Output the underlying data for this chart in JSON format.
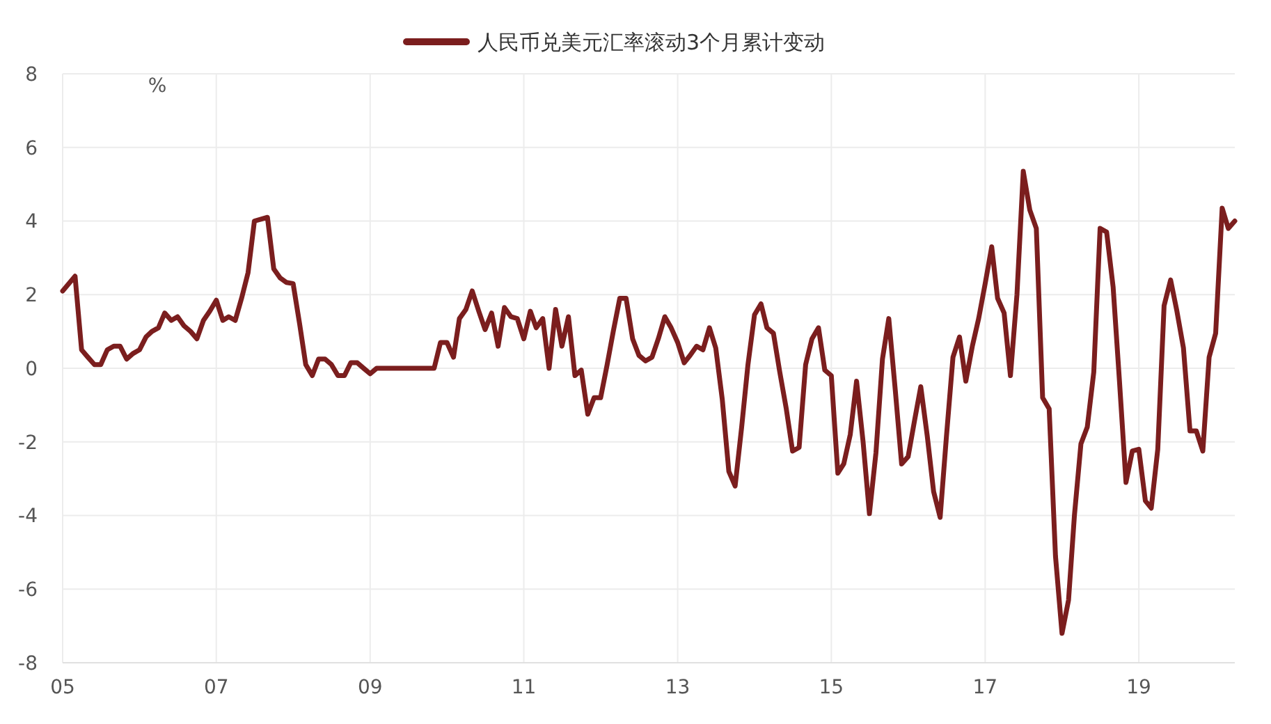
{
  "chart_data": {
    "type": "line",
    "legend": "top",
    "grid": true,
    "line_style": "solid",
    "marker": "none",
    "annotations": [
      "%"
    ],
    "x": [
      "2005-01",
      "2005-03",
      "2005-04",
      "2005-05",
      "2005-06",
      "2005-07",
      "2005-08",
      "2005-09",
      "2005-10",
      "2005-11",
      "2005-12",
      "2006-01",
      "2006-02",
      "2006-03",
      "2006-04",
      "2006-05",
      "2006-06",
      "2006-07",
      "2006-08",
      "2006-09",
      "2006-10",
      "2006-11",
      "2006-12",
      "2007-01",
      "2007-02",
      "2007-03",
      "2007-04",
      "2007-05",
      "2007-06",
      "2007-07",
      "2007-08",
      "2007-09",
      "2007-10",
      "2007-11",
      "2007-12",
      "2008-01",
      "2008-02",
      "2008-03",
      "2008-04",
      "2008-05",
      "2008-06",
      "2008-07",
      "2008-08",
      "2008-09",
      "2008-10",
      "2008-11",
      "2008-12",
      "2009-01",
      "2009-02",
      "2009-11",
      "2009-12",
      "2010-01",
      "2010-02",
      "2010-03",
      "2010-04",
      "2010-05",
      "2010-06",
      "2010-07",
      "2010-08",
      "2010-09",
      "2010-10",
      "2010-11",
      "2010-12",
      "2011-01",
      "2011-02",
      "2011-03",
      "2011-04",
      "2011-05",
      "2011-06",
      "2011-07",
      "2011-08",
      "2011-09",
      "2011-10",
      "2011-11",
      "2011-12",
      "2012-01",
      "2012-02",
      "2012-03",
      "2012-04",
      "2012-05",
      "2012-06",
      "2012-07",
      "2012-08",
      "2012-09",
      "2012-10",
      "2012-11",
      "2012-12",
      "2013-01",
      "2013-02",
      "2013-03",
      "2013-04",
      "2013-05",
      "2013-06",
      "2013-07",
      "2013-08",
      "2013-09",
      "2013-10",
      "2013-11",
      "2013-12",
      "2014-01",
      "2014-02",
      "2014-03",
      "2014-04",
      "2014-05",
      "2014-06",
      "2014-07",
      "2014-08",
      "2014-09",
      "2014-10",
      "2014-11",
      "2014-12",
      "2015-01",
      "2015-02",
      "2015-03",
      "2015-04",
      "2015-05",
      "2015-06",
      "2015-07",
      "2015-08",
      "2015-09",
      "2015-10",
      "2015-11",
      "2015-12",
      "2016-01",
      "2016-02",
      "2016-03",
      "2016-04",
      "2016-05",
      "2016-06",
      "2016-07",
      "2016-08",
      "2016-09",
      "2016-10",
      "2016-11",
      "2016-12",
      "2017-01",
      "2017-02",
      "2017-03",
      "2017-04",
      "2017-05",
      "2017-06",
      "2017-07",
      "2017-08",
      "2017-09",
      "2017-10",
      "2017-11",
      "2017-12",
      "2018-01",
      "2018-02",
      "2018-03",
      "2018-04",
      "2018-05",
      "2018-06",
      "2018-07",
      "2018-08",
      "2018-09",
      "2018-10",
      "2018-11",
      "2018-12",
      "2019-01",
      "2019-02",
      "2019-03",
      "2019-04",
      "2019-05",
      "2019-06",
      "2019-07",
      "2019-08",
      "2019-09",
      "2019-10",
      "2019-11",
      "2019-12",
      "2020-01",
      "2020-02",
      "2020-03",
      "2020-04"
    ],
    "series": [
      {
        "name": "人民币兑美元汇率滚动3个月累计变动",
        "color": "#7b1e1e",
        "values": [
          2.1,
          2.5,
          0.5,
          0.3,
          0.1,
          0.1,
          0.5,
          0.6,
          0.6,
          0.25,
          0.4,
          0.5,
          0.85,
          1.0,
          1.1,
          1.5,
          1.3,
          1.4,
          1.15,
          1.0,
          0.8,
          1.3,
          1.55,
          1.85,
          1.3,
          1.4,
          1.3,
          1.9,
          2.6,
          4.0,
          4.05,
          4.1,
          2.7,
          2.45,
          2.33,
          2.3,
          1.2,
          0.1,
          -0.2,
          0.25,
          0.25,
          0.1,
          -0.2,
          -0.2,
          0.15,
          0.15,
          0.0,
          -0.15,
          0.0,
          0.0,
          0.7,
          0.7,
          0.3,
          1.35,
          1.6,
          2.1,
          1.55,
          1.05,
          1.5,
          0.6,
          1.65,
          1.4,
          1.35,
          0.8,
          1.55,
          1.1,
          1.35,
          0.0,
          1.6,
          0.6,
          1.4,
          -0.2,
          -0.05,
          -1.25,
          -0.8,
          -0.8,
          0.1,
          1.0,
          1.9,
          1.9,
          0.8,
          0.35,
          0.2,
          0.3,
          0.8,
          1.4,
          1.1,
          0.7,
          0.15,
          0.35,
          0.6,
          0.5,
          1.1,
          0.55,
          -0.85,
          -2.8,
          -3.2,
          -1.6,
          0.1,
          1.45,
          1.75,
          1.1,
          0.95,
          -0.1,
          -1.1,
          -2.25,
          -2.15,
          0.1,
          0.8,
          1.1,
          -0.05,
          -0.2,
          -2.85,
          -2.6,
          -1.8,
          -0.35,
          -2.0,
          -3.95,
          -2.3,
          0.25,
          1.35,
          -0.6,
          -2.6,
          -2.4,
          -1.4,
          -0.5,
          -1.85,
          -3.35,
          -4.05,
          -1.85,
          0.3,
          0.85,
          -0.35,
          0.6,
          1.35,
          2.3,
          3.3,
          1.9,
          1.5,
          -0.2,
          2.0,
          5.35,
          4.3,
          3.8,
          -0.8,
          -1.1,
          -5.1,
          -7.2,
          -6.3,
          -4.0,
          -2.05,
          -1.6,
          -0.1,
          3.8,
          3.7,
          2.2,
          -0.35,
          -3.1,
          -2.25,
          -2.2,
          -3.6,
          -3.8,
          -2.2,
          1.7,
          2.4,
          1.55,
          0.55,
          -1.7,
          -1.7,
          -2.25,
          0.3,
          0.95,
          4.35,
          3.8,
          4.0
        ]
      }
    ],
    "xlim": [
      "2005-01",
      "2020-04"
    ],
    "xticks": [
      {
        "value": "2005-01",
        "label": "05"
      },
      {
        "value": "2007-01",
        "label": "07"
      },
      {
        "value": "2009-01",
        "label": "09"
      },
      {
        "value": "2011-01",
        "label": "11"
      },
      {
        "value": "2013-01",
        "label": "13"
      },
      {
        "value": "2015-01",
        "label": "15"
      },
      {
        "value": "2017-01",
        "label": "17"
      },
      {
        "value": "2019-01",
        "label": "19"
      }
    ],
    "ylim": [
      -8,
      8
    ],
    "yticks": [
      -8,
      -6,
      -4,
      -2,
      0,
      2,
      4,
      6,
      8
    ]
  }
}
